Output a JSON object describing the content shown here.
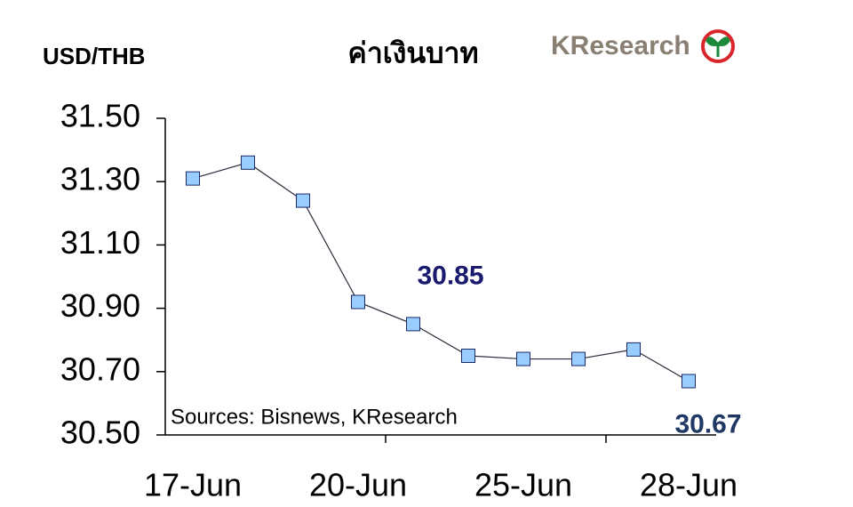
{
  "chart_data": {
    "type": "line",
    "title": "ค่าเงินบาท",
    "y_axis_label": "USD/THB",
    "logo": "KResearch",
    "source": "Sources: Bisnews, KResearch",
    "categories": [
      "17-Jun",
      null,
      null,
      "20-Jun",
      null,
      null,
      "25-Jun",
      null,
      null,
      "28-Jun"
    ],
    "series": [
      {
        "name": "USD/THB",
        "color": "#99ccff",
        "values": [
          31.31,
          31.36,
          31.24,
          30.92,
          30.85,
          30.75,
          30.74,
          30.74,
          30.77,
          30.67
        ],
        "value_labels": [
          null,
          null,
          null,
          null,
          "30.85",
          null,
          null,
          null,
          null,
          "30.67"
        ]
      }
    ],
    "ylim": [
      30.5,
      31.5
    ],
    "yticks": [
      {
        "value": 30.5,
        "label": "30.50"
      },
      {
        "value": 30.7,
        "label": "30.70"
      },
      {
        "value": 30.9,
        "label": "30.90"
      },
      {
        "value": 31.1,
        "label": "31.10"
      },
      {
        "value": 31.3,
        "label": "31.30"
      },
      {
        "value": 31.5,
        "label": "31.50"
      }
    ],
    "grid": false
  }
}
